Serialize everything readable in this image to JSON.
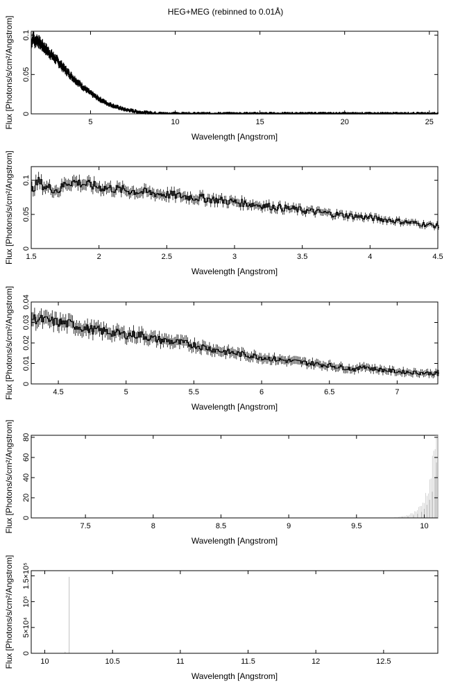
{
  "title": "HEG+MEG (rebinned to 0.01Å)",
  "colors": {
    "data": "#000000",
    "errorbar": "#bfbfbf",
    "axis": "#000000"
  },
  "chart_data": [
    {
      "type": "line",
      "title": "HEG+MEG (rebinned to 0.01Å)",
      "xlabel": "Wavelength [Angstrom]",
      "ylabel": "Flux [Photons/s/cm²/Angstrom]",
      "xlim": [
        1.5,
        25.5
      ],
      "ylim": [
        0,
        0.105
      ],
      "xticks": [
        5,
        10,
        15,
        20,
        25
      ],
      "xtick_labels": [
        "5",
        "10",
        "15",
        "20",
        "25"
      ],
      "yticks": [
        0,
        0.05,
        0.1
      ],
      "ytick_labels": [
        "0",
        "0.05",
        "0.1"
      ],
      "series": [
        {
          "x": [
            1.5,
            1.6,
            1.7,
            1.8,
            2.0,
            2.5,
            3.0,
            3.5,
            4.0,
            4.5,
            5.0,
            5.5,
            6.0,
            6.5,
            7.0,
            8.0,
            9.0,
            9.5,
            10,
            12,
            15,
            20,
            25.5
          ],
          "y": [
            0.088,
            0.1,
            0.09,
            0.095,
            0.09,
            0.079,
            0.068,
            0.056,
            0.045,
            0.035,
            0.026,
            0.019,
            0.013,
            0.009,
            0.0055,
            0.002,
            0.0005,
            0.0002,
            0.0001,
            5e-05,
            2e-05,
            1e-05,
            1e-05
          ]
        }
      ]
    },
    {
      "type": "line",
      "xlabel": "Wavelength [Angstrom]",
      "ylabel": "Flux [Photons/s/cm²/Angstrom]",
      "xlim": [
        1.5,
        4.5
      ],
      "ylim": [
        0,
        0.12
      ],
      "xticks": [
        1.5,
        2,
        2.5,
        3,
        3.5,
        4,
        4.5
      ],
      "xtick_labels": [
        "1.5",
        "2",
        "2.5",
        "3",
        "3.5",
        "4",
        "4.5"
      ],
      "yticks": [
        0,
        0.05,
        0.1
      ],
      "ytick_labels": [
        "0",
        "0.05",
        "0.1"
      ],
      "series": [
        {
          "x": [
            1.5,
            1.55,
            1.6,
            1.65,
            1.7,
            1.75,
            1.8,
            1.9,
            2.0,
            2.25,
            2.5,
            2.75,
            3.0,
            3.25,
            3.5,
            3.75,
            4.0,
            4.25,
            4.5
          ],
          "y": [
            0.087,
            0.098,
            0.09,
            0.088,
            0.085,
            0.096,
            0.098,
            0.094,
            0.09,
            0.084,
            0.079,
            0.074,
            0.068,
            0.062,
            0.056,
            0.05,
            0.045,
            0.039,
            0.033
          ]
        }
      ]
    },
    {
      "type": "line",
      "xlabel": "Wavelength [Angstrom]",
      "ylabel": "Flux [Photons/s/cm²/Angstrom]",
      "xlim": [
        4.3,
        7.3
      ],
      "ylim": [
        0,
        0.04
      ],
      "xticks": [
        4.5,
        5,
        5.5,
        6,
        6.5,
        7
      ],
      "xtick_labels": [
        "4.5",
        "5",
        "5.5",
        "6",
        "6.5",
        "7"
      ],
      "yticks": [
        0,
        0.01,
        0.02,
        0.03,
        0.04
      ],
      "ytick_labels": [
        "0",
        "0.01",
        "0.02",
        "0.03",
        "0.04"
      ],
      "series": [
        {
          "x": [
            4.3,
            4.4,
            4.5,
            4.6,
            4.7,
            4.8,
            4.9,
            5.0,
            5.1,
            5.2,
            5.3,
            5.5,
            5.7,
            5.9,
            6.1,
            6.3,
            6.5,
            6.7,
            6.75,
            6.8,
            7.0,
            7.3
          ],
          "y": [
            0.032,
            0.031,
            0.03,
            0.029,
            0.027,
            0.026,
            0.025,
            0.024,
            0.024,
            0.022,
            0.021,
            0.019,
            0.016,
            0.014,
            0.012,
            0.0105,
            0.009,
            0.007,
            0.009,
            0.0075,
            0.006,
            0.005
          ]
        }
      ]
    },
    {
      "type": "bar",
      "xlabel": "Wavelength [Angstrom]",
      "ylabel": "Flux [Photons/s/cm²/Angstrom]",
      "xlim": [
        7.1,
        10.1
      ],
      "ylim": [
        0,
        82
      ],
      "xticks": [
        7.5,
        8,
        8.5,
        9,
        9.5,
        10
      ],
      "xtick_labels": [
        "7.5",
        "8",
        "8.5",
        "9",
        "9.5",
        "10"
      ],
      "yticks": [
        0,
        20,
        40,
        60,
        80
      ],
      "ytick_labels": [
        "0",
        "20",
        "40",
        "60",
        "80"
      ],
      "series": [
        {
          "x": [
            9.8,
            9.84,
            9.88,
            9.92,
            9.95,
            9.98,
            10.0,
            10.02,
            10.04,
            10.06,
            10.08,
            10.09
          ],
          "y": [
            0.3,
            0.8,
            1.5,
            2.5,
            4,
            6,
            9,
            13,
            18,
            26,
            40,
            55
          ]
        }
      ]
    },
    {
      "type": "bar",
      "xlabel": "Wavelength [Angstrom]",
      "ylabel": "Flux [Photons/s/cm²/Angstrom]",
      "xlim": [
        9.9,
        12.9
      ],
      "ylim": [
        0,
        160000
      ],
      "xticks": [
        10,
        10.5,
        11,
        11.5,
        12,
        12.5
      ],
      "xtick_labels": [
        "10",
        "10.5",
        "11",
        "11.5",
        "12",
        "12.5"
      ],
      "yticks": [
        0,
        50000,
        100000,
        150000
      ],
      "ytick_labels": [
        "0",
        "5×10⁴",
        "10⁵",
        "1.5×10⁵"
      ],
      "series": [
        {
          "x": [
            10.15,
            10.18
          ],
          "y": [
            3000,
            148000
          ]
        }
      ]
    }
  ]
}
